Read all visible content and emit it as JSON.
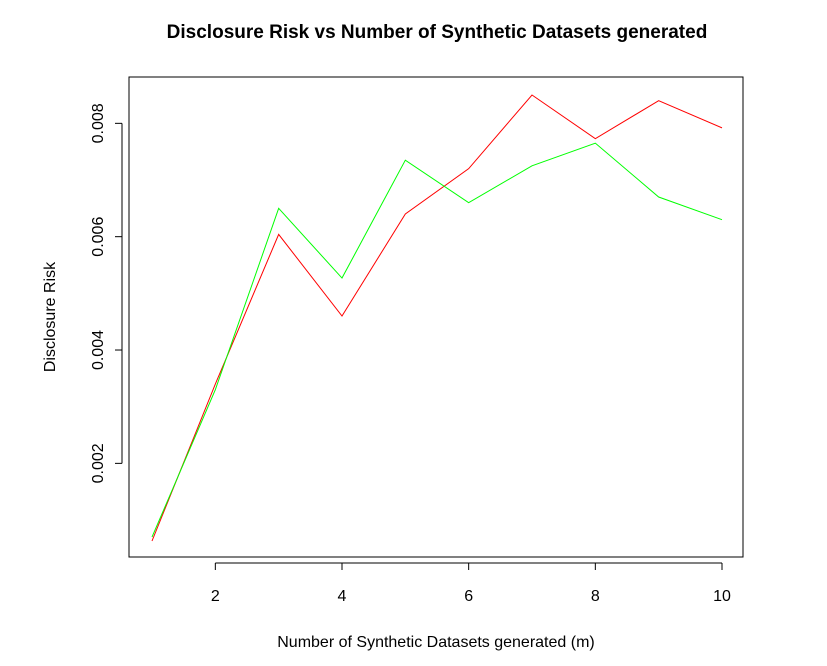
{
  "chart_data": {
    "type": "line",
    "title": "Disclosure Risk vs Number of Synthetic Datasets generated",
    "xlabel": "Number of Synthetic Datasets generated (m)",
    "ylabel": "Disclosure Risk",
    "x": [
      1,
      2,
      3,
      4,
      5,
      6,
      7,
      8,
      9,
      10
    ],
    "xlim": [
      1,
      10
    ],
    "ylim": [
      0.00063,
      0.0085
    ],
    "xticks": [
      2,
      4,
      6,
      8,
      10
    ],
    "yticks": [
      0.002,
      0.004,
      0.006,
      0.008
    ],
    "xtick_labels": [
      "2",
      "4",
      "6",
      "8",
      "10"
    ],
    "ytick_labels": [
      "0.002",
      "0.004",
      "0.006",
      "0.008"
    ],
    "grid": false,
    "legend": "none",
    "series": [
      {
        "color": "#ff0000",
        "values": [
          0.00063,
          0.0034,
          0.00604,
          0.0046,
          0.0064,
          0.0072,
          0.0085,
          0.00773,
          0.0084,
          0.00792
        ]
      },
      {
        "color": "#00ff00",
        "values": [
          0.0007,
          0.0033,
          0.0065,
          0.00527,
          0.00735,
          0.0066,
          0.00725,
          0.00765,
          0.0067,
          0.0063
        ]
      }
    ]
  }
}
